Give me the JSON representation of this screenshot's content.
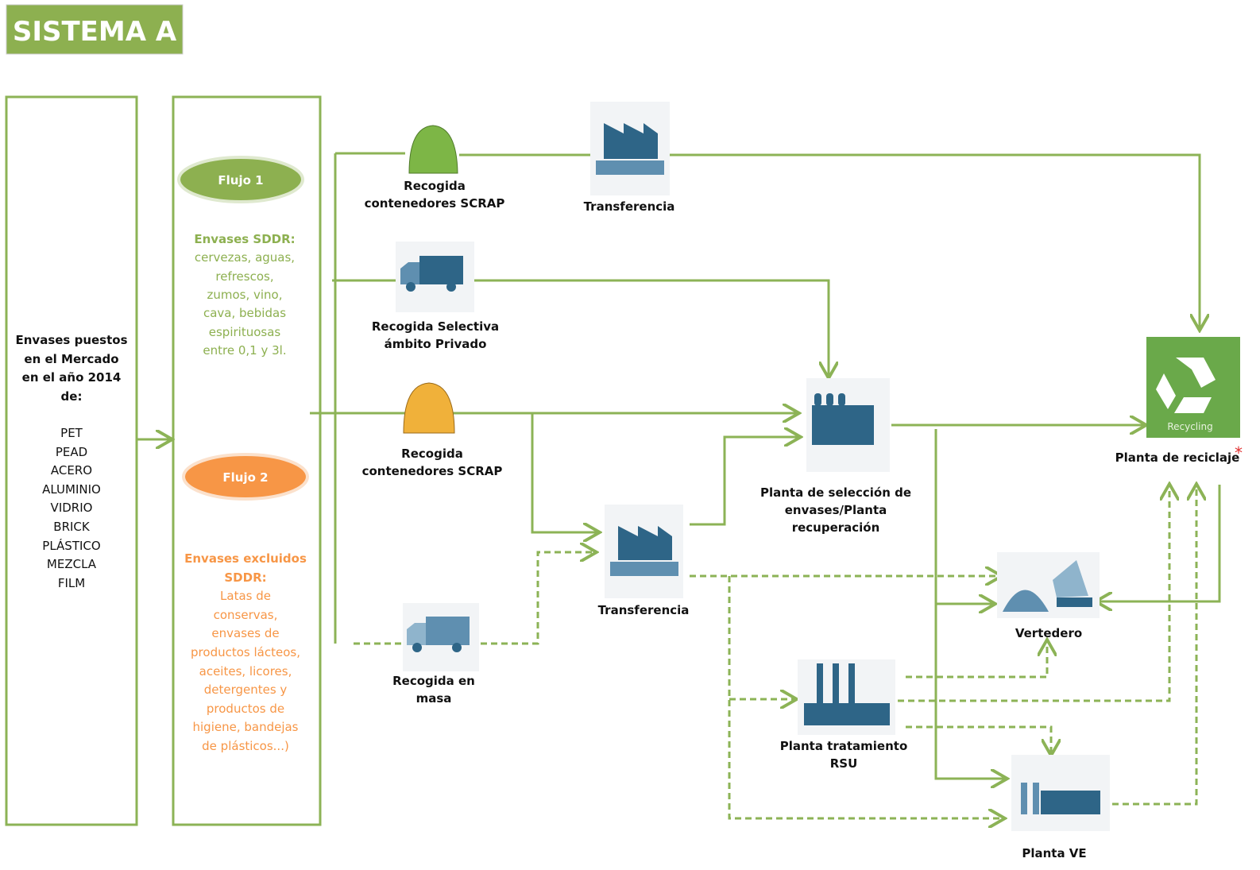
{
  "header": {
    "title": "SISTEMA A"
  },
  "market": {
    "title": [
      "Envases puestos",
      "en el Mercado",
      "en el año 2014",
      "de:"
    ],
    "items": [
      "PET",
      "PEAD",
      "ACERO",
      "ALUMINIO",
      "VIDRIO",
      "BRICK",
      "PLÁSTICO",
      "MEZCLA",
      "FILM"
    ]
  },
  "flows": [
    {
      "label": "Flujo 1",
      "text": [
        "Envases SDDR:",
        "cervezas, aguas,",
        "refrescos,",
        "zumos, vino,",
        "cava, bebidas",
        "espirituosas",
        "entre 0,1 y 3l."
      ]
    },
    {
      "label": "Flujo 2",
      "text": [
        "Envases excluidos",
        "SDDR:",
        "Latas de",
        "conservas,",
        "envases de",
        "productos lácteos,",
        "aceites, licores,",
        "detergentes y",
        "productos de",
        "higiene, bandejas",
        "de plásticos...)"
      ]
    }
  ],
  "nodes": [
    {
      "label": [
        "Recogida",
        "contenedores SCRAP"
      ]
    },
    {
      "label": [
        "Transferencia"
      ]
    },
    {
      "label": [
        "Recogida Selectiva",
        "ámbito Privado"
      ]
    },
    {
      "label": [
        "Recogida",
        "contenedores SCRAP"
      ]
    },
    {
      "label": [
        "Transferencia"
      ]
    },
    {
      "label": [
        "Recogida en",
        "masa"
      ]
    },
    {
      "label": [
        "Planta de selección de",
        "envases/Planta",
        "recuperación"
      ]
    },
    {
      "label": [
        "Planta de reciclaje"
      ],
      "note": "*",
      "icon_text": "Recycling"
    },
    {
      "label": [
        "Vertedero"
      ]
    },
    {
      "label": [
        "Planta tratamiento",
        "RSU"
      ]
    },
    {
      "label": [
        "Planta VE"
      ]
    }
  ]
}
